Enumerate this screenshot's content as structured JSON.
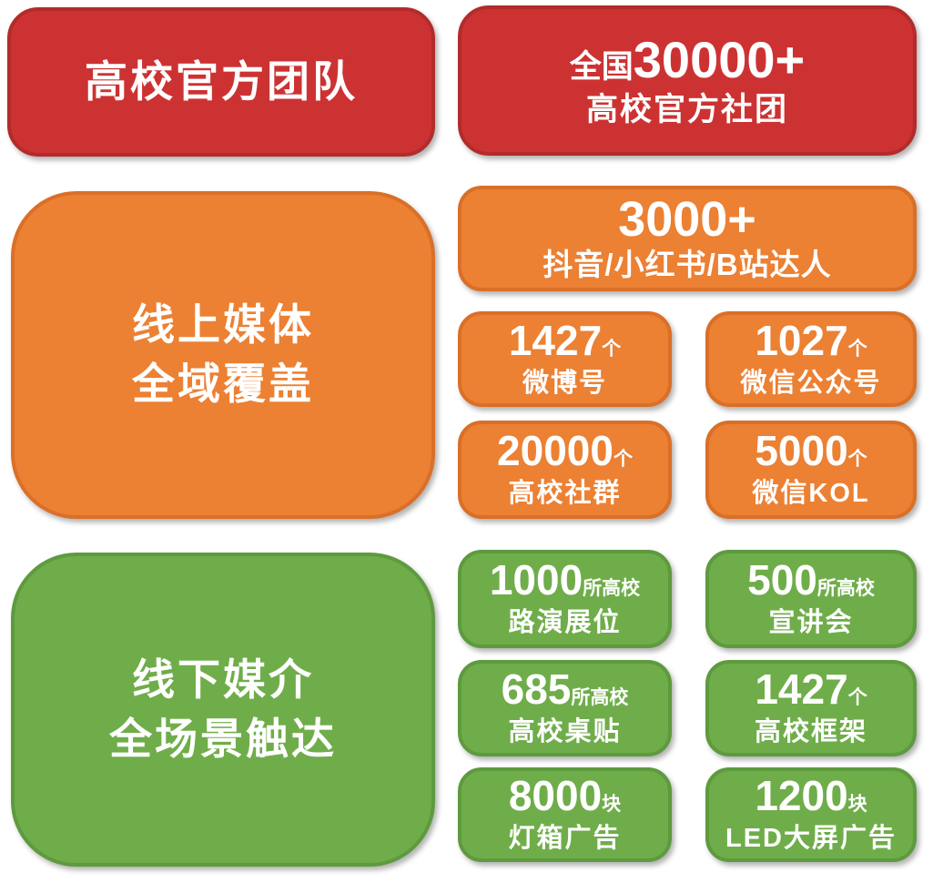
{
  "colors": {
    "background": "#ffffff",
    "red": "#cd3232",
    "red_border": "#b32b2b",
    "orange": "#ec8033",
    "orange_border": "#da6f28",
    "green": "#6fad4a",
    "green_border": "#5e9a3e",
    "text": "#ffffff"
  },
  "header": {
    "left_title": "高校官方团队",
    "right": {
      "prefix": "全国",
      "number": "30000+",
      "label": "高校官方社团"
    }
  },
  "online": {
    "title_line1": "线上媒体",
    "title_line2": "全域覆盖",
    "feature": {
      "number": "3000+",
      "label": "抖音/小红书/B站达人"
    },
    "stats": [
      {
        "number": "1427",
        "suffix": "个",
        "label": "微博号"
      },
      {
        "number": "1027",
        "suffix": "个",
        "label": "微信公众号"
      },
      {
        "number": "20000",
        "suffix": "个",
        "label": "高校社群"
      },
      {
        "number": "5000",
        "suffix": "个",
        "label": "微信KOL"
      }
    ]
  },
  "offline": {
    "title_line1": "线下媒介",
    "title_line2": "全场景触达",
    "stats": [
      {
        "number": "1000",
        "suffix": "所高校",
        "label": "路演展位"
      },
      {
        "number": "500",
        "suffix": "所高校",
        "label": "宣讲会"
      },
      {
        "number": "685",
        "suffix": "所高校",
        "label": "高校桌贴"
      },
      {
        "number": "1427",
        "suffix": "个",
        "label": "高校框架"
      },
      {
        "number": "8000",
        "suffix": "块",
        "label": "灯箱广告"
      },
      {
        "number": "1200",
        "suffix": "块",
        "label": "LED大屏广告"
      }
    ]
  }
}
